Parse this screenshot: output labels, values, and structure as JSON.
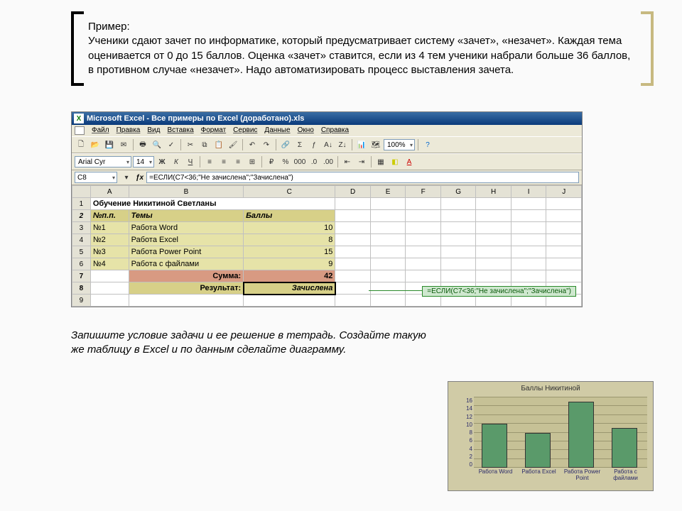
{
  "intro": {
    "heading": "Пример:",
    "text": "Ученики сдают зачет по информатике, который предусматривает систему «зачет», «незачет». Каждая тема оценивается от 0 до 15 баллов. Оценка «зачет» ставится, если из 4 тем ученики набрали больше 36 баллов, в противном случае «незачет». Надо автоматизировать процесс выставления зачета."
  },
  "excel": {
    "title": "Microsoft Excel - Все примеры по Excel (доработано).xls",
    "menu": [
      "Файл",
      "Правка",
      "Вид",
      "Вставка",
      "Формат",
      "Сервис",
      "Данные",
      "Окно",
      "Справка"
    ],
    "font_name": "Arial Cyr",
    "font_size": "14",
    "name_box": "C8",
    "formula": "=ЕСЛИ(C7<36;\"Не зачислена\";\"Зачислена\")",
    "columns": [
      "A",
      "B",
      "C",
      "D",
      "E",
      "F",
      "G",
      "H",
      "I",
      "J"
    ],
    "header_row": "Обучение Никитиной Светланы",
    "col_headers": {
      "a": "№п.п.",
      "b": "Темы",
      "c": "Баллы"
    },
    "rows": [
      {
        "n": "№1",
        "topic": "Работа Word",
        "score": "10"
      },
      {
        "n": "№2",
        "topic": "Работа Excel",
        "score": "8"
      },
      {
        "n": "№3",
        "topic": "Работа Power Point",
        "score": "15"
      },
      {
        "n": "№4",
        "topic": "Работа с файлами",
        "score": "9"
      }
    ],
    "sum_label": "Сумма:",
    "sum_value": "42",
    "result_label": "Результат:",
    "result_value": "Зачислена",
    "callout": "=ЕСЛИ(C7<36;\"Не зачислена\";\"Зачислена\")"
  },
  "task": "Запишите условие задачи и ее решение в тетрадь. Создайте такую же таблицу в Excel и по данным сделайте диаграмму.",
  "chart": {
    "title": "Баллы Никитиной",
    "categories": [
      "Работа Word",
      "Работа Excel",
      "Работа Power Point",
      "Работа с файлами"
    ],
    "values": [
      10,
      8,
      15,
      9
    ],
    "ymax": 16,
    "ystep": 2,
    "bar_color": "#5a9a6a",
    "bg": "#d0cba6",
    "plot_bg": "#c6c196"
  }
}
